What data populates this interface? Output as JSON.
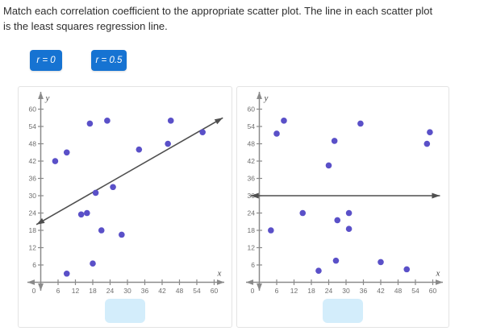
{
  "instructions": {
    "line1": "Match each correlation coefficient to the appropriate scatter plot. The line in each scatter plot",
    "line2": "is the least squares regression line."
  },
  "chips": [
    {
      "label": "r = 0"
    },
    {
      "label": "r = 0.5"
    }
  ],
  "colors": {
    "chip_bg": "#1673d2",
    "chip_text": "#ffffff",
    "dot": "#5a50c8",
    "regression_line": "#4f4f4f",
    "axis": "#8a8a8a",
    "tick_label": "#6e6e6e",
    "axis_letter": "#4a4a4a",
    "panel_border": "#e3e3e3",
    "drop_zone_bg": "#d3edfb"
  },
  "chart_data": [
    {
      "type": "scatter",
      "title": "",
      "xlabel": "x",
      "ylabel": "y",
      "xlim": [
        0,
        63
      ],
      "ylim": [
        0,
        63
      ],
      "x_ticks": [
        6,
        12,
        18,
        24,
        30,
        36,
        42,
        48,
        54,
        60
      ],
      "y_ticks": [
        6,
        12,
        18,
        24,
        30,
        36,
        42,
        48,
        54,
        60
      ],
      "origin_label": "0",
      "grid": false,
      "points": [
        [
          5,
          42
        ],
        [
          9,
          45
        ],
        [
          17,
          55
        ],
        [
          23,
          56
        ],
        [
          34,
          46
        ],
        [
          44,
          48
        ],
        [
          45,
          56
        ],
        [
          56,
          52
        ],
        [
          19,
          31
        ],
        [
          25,
          33
        ],
        [
          14,
          23.5
        ],
        [
          16,
          24
        ],
        [
          21,
          18
        ],
        [
          28,
          16.5
        ],
        [
          18,
          6.5
        ],
        [
          9,
          3
        ]
      ],
      "regression_line": {
        "x1": -1.5,
        "y1": 20,
        "x2": 63,
        "y2": 57
      }
    },
    {
      "type": "scatter",
      "title": "",
      "xlabel": "x",
      "ylabel": "y",
      "xlim": [
        0,
        63
      ],
      "ylim": [
        0,
        63
      ],
      "x_ticks": [
        6,
        12,
        18,
        24,
        30,
        36,
        42,
        48,
        54,
        60
      ],
      "y_ticks": [
        6,
        12,
        18,
        24,
        30,
        36,
        42,
        48,
        54,
        60
      ],
      "origin_label": "0",
      "grid": false,
      "points": [
        [
          8.5,
          56
        ],
        [
          6,
          51.5
        ],
        [
          35,
          55
        ],
        [
          59,
          52
        ],
        [
          58,
          48
        ],
        [
          26,
          49
        ],
        [
          24,
          40.5
        ],
        [
          15,
          24
        ],
        [
          31,
          24
        ],
        [
          27,
          21.5
        ],
        [
          31,
          18.5
        ],
        [
          4,
          18
        ],
        [
          26.5,
          7.5
        ],
        [
          20.5,
          4
        ],
        [
          42,
          7
        ],
        [
          51,
          4.5
        ]
      ],
      "regression_line": {
        "x1": -3,
        "y1": 30,
        "x2": 62.5,
        "y2": 30
      }
    }
  ]
}
